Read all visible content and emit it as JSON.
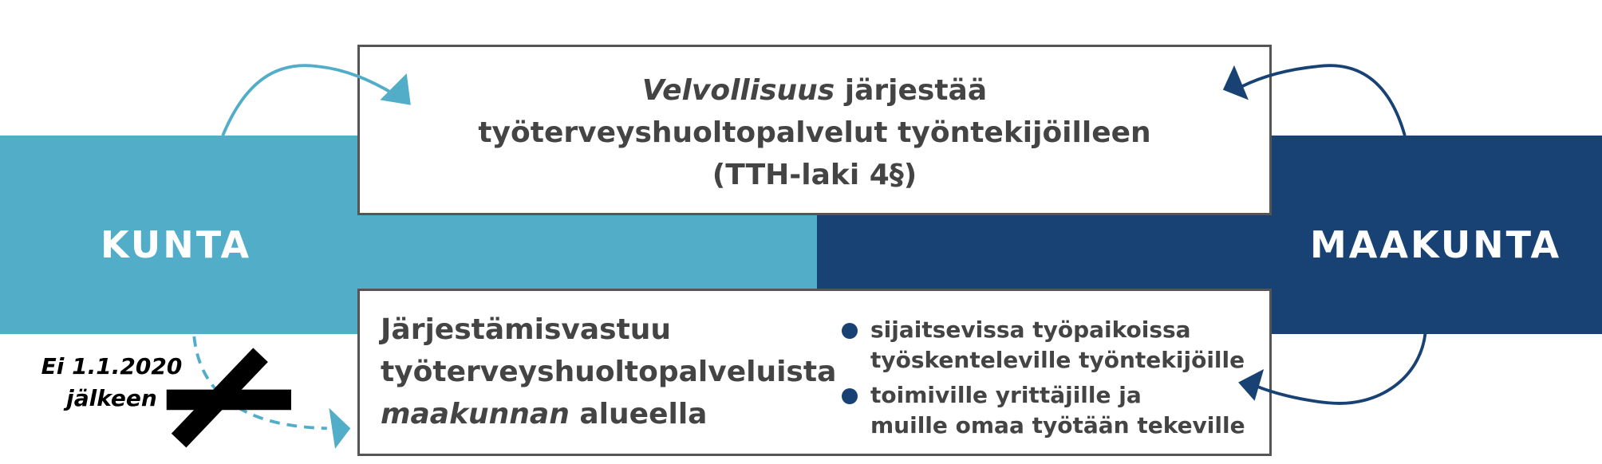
{
  "left_entity": {
    "label": "KUNTA",
    "color": "#51adc8"
  },
  "right_entity": {
    "label": "MAAKUNTA",
    "color": "#194274"
  },
  "top_box": {
    "emphasis": "Velvollisuus",
    "line1_rest": " järjestää",
    "line2": "työterveyshuoltopalvelut työntekijöilleen",
    "line3": "(TTH-laki 4§)"
  },
  "bottom_box": {
    "line1": "Järjestämisvastuu",
    "line2": "työterveyshuoltopalveluista",
    "emphasis": "maakunnan",
    "line3_rest": " alueella",
    "bullets": [
      {
        "line1": "sijaitsevissa työpaikoissa",
        "line2": "työskenteleville työntekijöille"
      },
      {
        "line1": "toimiville yrittäjille ja",
        "line2": "muille omaa työtään tekeville"
      }
    ]
  },
  "crossed_note": {
    "line1": "Ei 1.1.2020",
    "line2": "jälkeen"
  }
}
